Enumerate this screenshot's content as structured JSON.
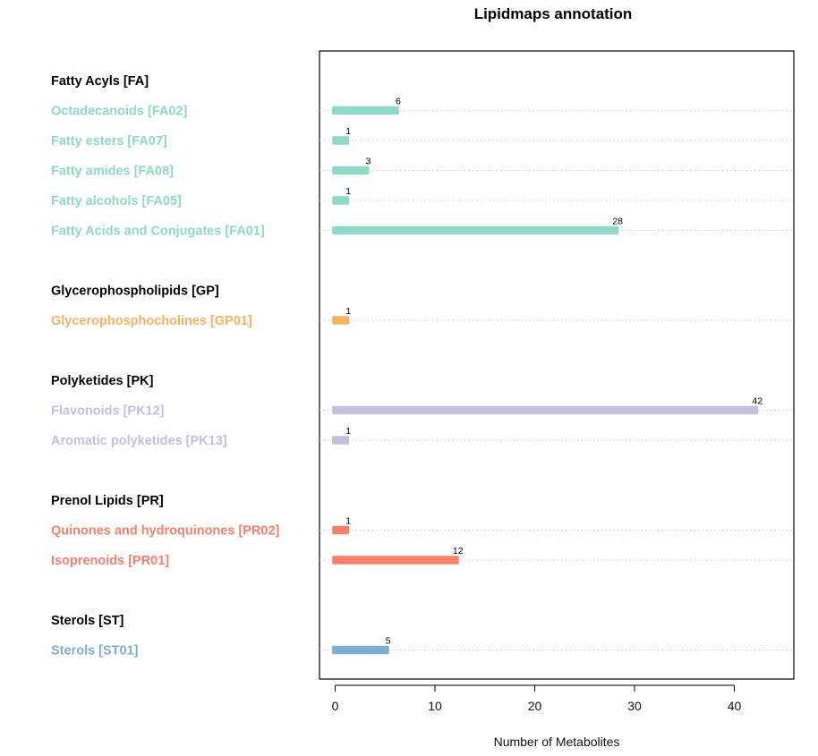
{
  "chart_data": {
    "type": "bar",
    "orientation": "horizontal",
    "title": "Lipidmaps annotation",
    "xlabel": "Number of Metabolites",
    "ylabel": "",
    "xlim": [
      0,
      45
    ],
    "x_ticks": [
      0,
      10,
      20,
      30,
      40
    ],
    "x_tick_labels": [
      "0",
      "10",
      "20",
      "30",
      "40"
    ],
    "grid": "dotted horizontal guide lines",
    "groups": [
      {
        "name": "Fatty Acyls [FA]",
        "color": "#8fd9c9",
        "items": [
          {
            "label": "Octadecanoids [FA02]",
            "value": 6
          },
          {
            "label": "Fatty esters [FA07]",
            "value": 1
          },
          {
            "label": "Fatty amides [FA08]",
            "value": 3
          },
          {
            "label": "Fatty alcohols [FA05]",
            "value": 1
          },
          {
            "label": "Fatty Acids and Conjugates [FA01]",
            "value": 28
          }
        ]
      },
      {
        "name": "Glycerophospholipids [GP]",
        "color": "#f7b262",
        "items": [
          {
            "label": "Glycerophosphocholines [GP01]",
            "value": 1
          }
        ]
      },
      {
        "name": "Polyketides [PK]",
        "color": "#c4c0db",
        "items": [
          {
            "label": "Flavonoids [PK12]",
            "value": 42
          },
          {
            "label": "Aromatic polyketides [PK13]",
            "value": 1
          }
        ]
      },
      {
        "name": "Prenol Lipids [PR]",
        "color": "#f8806d",
        "items": [
          {
            "label": "Quinones and hydroquinones [PR02]",
            "value": 1
          },
          {
            "label": "Isoprenoids [PR01]",
            "value": 12
          }
        ]
      },
      {
        "name": "Sterols [ST]",
        "color": "#7eaed0",
        "items": [
          {
            "label": "Sterols [ST01]",
            "value": 5
          }
        ]
      }
    ]
  }
}
